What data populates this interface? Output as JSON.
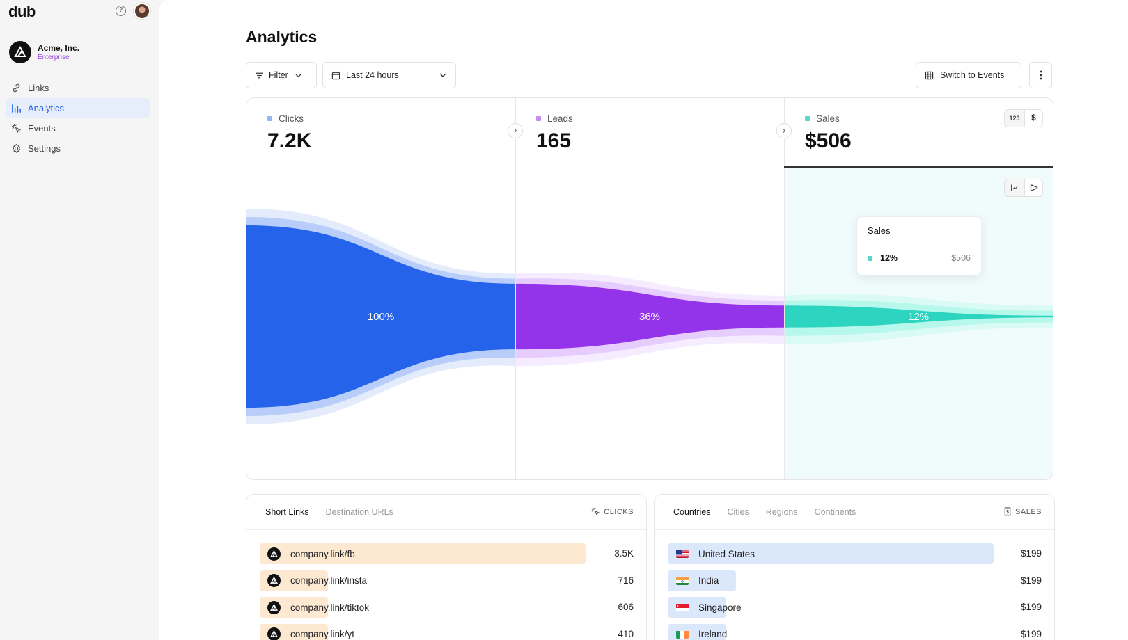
{
  "app": {
    "logo": "dub"
  },
  "workspace": {
    "name": "Acme, Inc.",
    "plan": "Enterprise"
  },
  "sidebar": {
    "items": [
      {
        "label": "Links",
        "icon": "link-icon",
        "active": false
      },
      {
        "label": "Analytics",
        "icon": "bar-chart-icon",
        "active": true
      },
      {
        "label": "Events",
        "icon": "cursor-rays-icon",
        "active": false
      },
      {
        "label": "Settings",
        "icon": "gear-icon",
        "active": false
      }
    ]
  },
  "page": {
    "title": "Analytics"
  },
  "toolbar": {
    "filter_label": "Filter",
    "date_range": "Last 24 hours",
    "switch_label": "Switch to Events"
  },
  "metrics": [
    {
      "label": "Clicks",
      "value": "7.2K",
      "color": "#93b4f5"
    },
    {
      "label": "Leads",
      "value": "165",
      "color": "#c58cf2"
    },
    {
      "label": "Sales",
      "value": "$506",
      "color": "#5bd5c8"
    }
  ],
  "sales_toggle": {
    "count_label": "123",
    "currency_label": "$"
  },
  "chart_data": {
    "type": "funnel",
    "stages": [
      {
        "name": "Clicks",
        "percent": 100,
        "label": "100%",
        "color": "#2563eb",
        "halo": "#93b4f5"
      },
      {
        "name": "Leads",
        "percent": 36,
        "label": "36%",
        "color": "#9333ea",
        "halo": "#d8b4fe"
      },
      {
        "name": "Sales",
        "percent": 12,
        "label": "12%",
        "color": "#2dd4bf",
        "halo": "#99f6e4"
      }
    ]
  },
  "tooltip": {
    "title": "Sales",
    "percent": "12%",
    "value": "$506"
  },
  "links_panel": {
    "tabs": [
      "Short Links",
      "Destination URLs"
    ],
    "metric_label": "CLICKS",
    "rows": [
      {
        "label": "company.link/fb",
        "value": "3.5K",
        "fraction": 1.0
      },
      {
        "label": "company.link/insta",
        "value": "716",
        "fraction": 0.2
      },
      {
        "label": "company.link/tiktok",
        "value": "606",
        "fraction": 0.17
      },
      {
        "label": "company.link/yt",
        "value": "410",
        "fraction": 0.12
      }
    ],
    "bar_color": "#fde9d2"
  },
  "geo_panel": {
    "tabs": [
      "Countries",
      "Cities",
      "Regions",
      "Continents"
    ],
    "metric_label": "SALES",
    "rows": [
      {
        "label": "United States",
        "value": "$199",
        "fraction": 1.0,
        "flag": "us-flag-icon"
      },
      {
        "label": "India",
        "value": "$199",
        "fraction": 0.2,
        "flag": "india-flag-icon"
      },
      {
        "label": "Singapore",
        "value": "$199",
        "fraction": 0.17,
        "flag": "singapore-flag-icon"
      },
      {
        "label": "Ireland",
        "value": "$199",
        "fraction": 0.12,
        "flag": "ireland-flag-icon"
      }
    ],
    "bar_color": "#dbe7fb"
  }
}
